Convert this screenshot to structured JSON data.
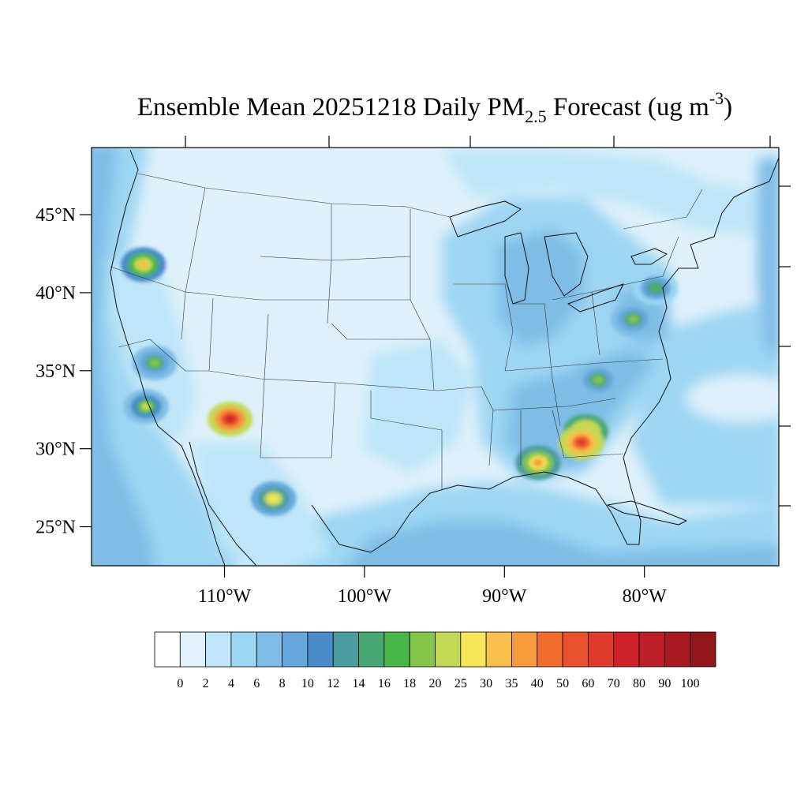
{
  "figure": {
    "title_prefix": "Ensemble Mean 20251218 Daily PM",
    "title_sub": "2.5",
    "title_mid": " Forecast (ug m",
    "title_sup": "-3",
    "title_suffix": ")"
  },
  "map": {
    "lon_range": [
      -119.5,
      -70.4
    ],
    "lat_range": [
      22.5,
      49.3
    ],
    "lat_ticks": [
      {
        "value": 45,
        "label": "45°N"
      },
      {
        "value": 40,
        "label": "40°N"
      },
      {
        "value": 35,
        "label": "35°N"
      },
      {
        "value": 30,
        "label": "30°N"
      },
      {
        "value": 25,
        "label": "25°N"
      }
    ],
    "lon_ticks": [
      {
        "value": -110,
        "label": "110°W"
      },
      {
        "value": -100,
        "label": "100°W"
      },
      {
        "value": -90,
        "label": "90°W"
      },
      {
        "value": -80,
        "label": "80°W"
      }
    ],
    "background_color": "#dff1fb",
    "hotspots": [
      {
        "lon": -109.6,
        "lat": 31.9,
        "value": 70
      },
      {
        "lon": -84.2,
        "lat": 31.1,
        "value": 40
      },
      {
        "lon": -84.5,
        "lat": 30.4,
        "value": 60
      },
      {
        "lon": -87.6,
        "lat": 29.1,
        "value": 35
      },
      {
        "lon": -115.8,
        "lat": 41.8,
        "value": 30
      },
      {
        "lon": -106.5,
        "lat": 26.8,
        "value": 25
      },
      {
        "lon": -115.6,
        "lat": 32.7,
        "value": 20
      },
      {
        "lon": -80.8,
        "lat": 38.3,
        "value": 18
      },
      {
        "lon": -79.2,
        "lat": 40.3,
        "value": 16
      },
      {
        "lon": -115.0,
        "lat": 35.5,
        "value": 18
      },
      {
        "lon": -83.3,
        "lat": 34.4,
        "value": 18
      }
    ]
  },
  "colorbar": {
    "colors": [
      "#ffffff",
      "#e0f3fc",
      "#bee6f8",
      "#9dd6f3",
      "#7fbde6",
      "#65a8dc",
      "#4a8cc9",
      "#4b9c9f",
      "#48a873",
      "#49b649",
      "#84c54c",
      "#c3d956",
      "#f7e659",
      "#f8c04a",
      "#f69a3c",
      "#f26d2c",
      "#e9502c",
      "#df3a2b",
      "#cf2129",
      "#be1e25",
      "#a91a20",
      "#901619"
    ],
    "labels": [
      "0",
      "2",
      "4",
      "6",
      "8",
      "10",
      "12",
      "14",
      "16",
      "18",
      "20",
      "25",
      "30",
      "35",
      "40",
      "50",
      "60",
      "70",
      "80",
      "90",
      "100"
    ]
  }
}
